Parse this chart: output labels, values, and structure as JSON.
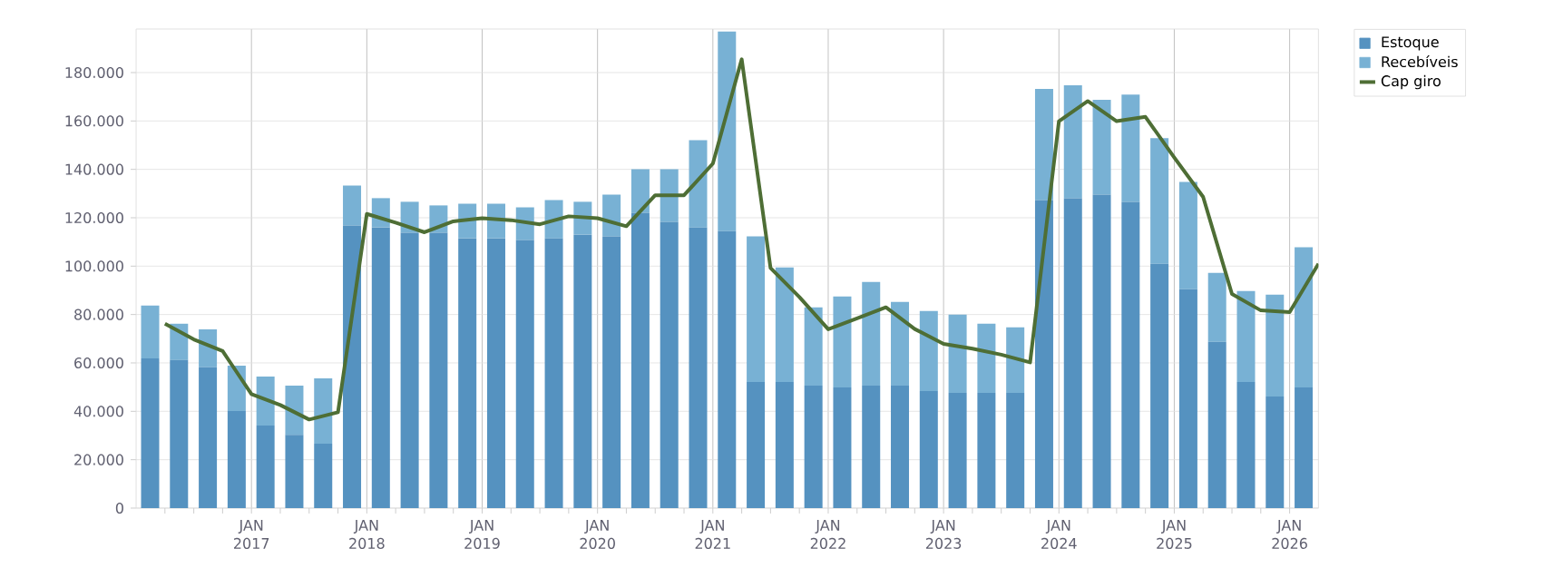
{
  "chart_data": {
    "type": "bar",
    "stacked": true,
    "grid": true,
    "legend": "top right",
    "x": [
      "2016-02-15",
      "2016-05-15",
      "2016-08-15",
      "2016-11-15",
      "2017-02-15",
      "2017-05-15",
      "2017-08-15",
      "2017-11-15",
      "2018-02-15",
      "2018-05-15",
      "2018-08-15",
      "2018-11-15",
      "2019-02-15",
      "2019-05-15",
      "2019-08-15",
      "2019-11-15",
      "2020-02-15",
      "2020-05-15",
      "2020-08-15",
      "2020-11-15",
      "2021-02-15",
      "2021-05-15",
      "2021-08-15",
      "2021-11-15",
      "2022-02-15",
      "2022-05-15",
      "2022-08-15",
      "2022-11-15",
      "2023-02-15",
      "2023-05-15",
      "2023-08-15",
      "2023-11-15",
      "2024-02-15",
      "2024-05-15",
      "2024-08-15",
      "2024-11-15",
      "2025-02-15",
      "2025-05-15",
      "2025-08-15",
      "2025-11-15",
      "2026-02-15"
    ],
    "xlim": [
      "2016-01",
      "2026-04"
    ],
    "xticks": [
      {
        "value": "2016-04",
        "label": null
      },
      {
        "value": "2016-07",
        "label": null
      },
      {
        "value": "2016-10",
        "label": null
      },
      {
        "value": "2017-01",
        "label": "JAN 2017"
      },
      {
        "value": "2017-04",
        "label": null
      },
      {
        "value": "2017-07",
        "label": null
      },
      {
        "value": "2017-10",
        "label": null
      },
      {
        "value": "2018-01",
        "label": "JAN 2018"
      },
      {
        "value": "2018-04",
        "label": null
      },
      {
        "value": "2018-07",
        "label": null
      },
      {
        "value": "2018-10",
        "label": null
      },
      {
        "value": "2019-01",
        "label": "JAN 2019"
      },
      {
        "value": "2019-04",
        "label": null
      },
      {
        "value": "2019-07",
        "label": null
      },
      {
        "value": "2019-10",
        "label": null
      },
      {
        "value": "2020-01",
        "label": "JAN 2020"
      },
      {
        "value": "2020-04",
        "label": null
      },
      {
        "value": "2020-07",
        "label": null
      },
      {
        "value": "2020-10",
        "label": null
      },
      {
        "value": "2021-01",
        "label": "JAN 2021"
      },
      {
        "value": "2021-04",
        "label": null
      },
      {
        "value": "2021-07",
        "label": null
      },
      {
        "value": "2021-10",
        "label": null
      },
      {
        "value": "2022-01",
        "label": "JAN 2022"
      },
      {
        "value": "2022-04",
        "label": null
      },
      {
        "value": "2022-07",
        "label": null
      },
      {
        "value": "2022-10",
        "label": null
      },
      {
        "value": "2023-01",
        "label": "JAN 2023"
      },
      {
        "value": "2023-04",
        "label": null
      },
      {
        "value": "2023-07",
        "label": null
      },
      {
        "value": "2023-10",
        "label": null
      },
      {
        "value": "2024-01",
        "label": "JAN 2024"
      },
      {
        "value": "2024-04",
        "label": null
      },
      {
        "value": "2024-07",
        "label": null
      },
      {
        "value": "2024-10",
        "label": null
      },
      {
        "value": "2025-01",
        "label": "JAN 2025"
      },
      {
        "value": "2025-04",
        "label": null
      },
      {
        "value": "2025-07",
        "label": null
      },
      {
        "value": "2025-10",
        "label": null
      },
      {
        "value": "2026-01",
        "label": "JAN 2026"
      }
    ],
    "ylim": [
      0,
      198000
    ],
    "yticks": [
      0,
      {
        "value": 20000,
        "label": "20.000"
      },
      {
        "value": 40000,
        "label": "40.000"
      },
      {
        "value": 60000,
        "label": "60.000"
      },
      {
        "value": 80000,
        "label": "80.000"
      },
      {
        "value": 100000,
        "label": "100.000"
      },
      {
        "value": 120000,
        "label": "120.000"
      },
      {
        "value": 140000,
        "label": "140.000"
      },
      {
        "value": 160000,
        "label": "160.000"
      },
      {
        "value": 180000,
        "label": "180.000"
      }
    ],
    "series": [
      {
        "name": "Estoque",
        "color": "#5592c0",
        "values": [
          61900,
          61200,
          58200,
          40100,
          34100,
          30300,
          26600,
          116800,
          116000,
          113800,
          113800,
          111500,
          111500,
          110800,
          111500,
          113000,
          112300,
          122100,
          118300,
          116000,
          114500,
          52100,
          52100,
          50600,
          49900,
          50600,
          50600,
          48400,
          47600,
          47600,
          47600,
          127300,
          128100,
          129600,
          126600,
          101000,
          90500,
          68700,
          52100,
          46100,
          49900
        ]
      },
      {
        "name": "Recebíveis",
        "color": "#78b1d4",
        "values": [
          21800,
          15000,
          15700,
          18800,
          20300,
          20300,
          27000,
          16500,
          12100,
          12800,
          11300,
          14300,
          14300,
          13500,
          15800,
          13600,
          17300,
          18000,
          21800,
          36100,
          82500,
          60200,
          47400,
          32400,
          37600,
          42900,
          34600,
          33100,
          32400,
          28600,
          27100,
          45900,
          46600,
          39100,
          44300,
          51900,
          44300,
          28500,
          37600,
          42100,
          57900
        ]
      },
      {
        "name": "Cap giro",
        "type": "line",
        "color": "#4e6e35",
        "x": [
          "2016-04",
          "2016-07",
          "2016-10",
          "2017-01",
          "2017-04",
          "2017-07",
          "2017-10",
          "2018-01",
          "2018-04",
          "2018-07",
          "2018-10",
          "2019-01",
          "2019-04",
          "2019-07",
          "2019-10",
          "2020-01",
          "2020-04",
          "2020-07",
          "2020-10",
          "2021-01",
          "2021-04",
          "2021-07",
          "2021-10",
          "2022-01",
          "2022-04",
          "2022-07",
          "2022-10",
          "2023-01",
          "2023-04",
          "2023-07",
          "2023-10",
          "2024-01",
          "2024-04",
          "2024-07",
          "2024-10",
          "2025-01",
          "2025-04",
          "2025-07",
          "2025-10",
          "2026-01",
          "2026-04"
        ],
        "values": [
          76200,
          69700,
          64900,
          47100,
          42600,
          36600,
          39600,
          121600,
          118000,
          114000,
          118500,
          119800,
          119000,
          117300,
          120600,
          119800,
          116500,
          129300,
          129300,
          142400,
          185500,
          99200,
          87200,
          73900,
          78400,
          83000,
          74000,
          67900,
          65900,
          63400,
          60200,
          159900,
          168200,
          159900,
          161700,
          144900,
          128600,
          88500,
          81700,
          81000,
          101000
        ]
      }
    ]
  }
}
